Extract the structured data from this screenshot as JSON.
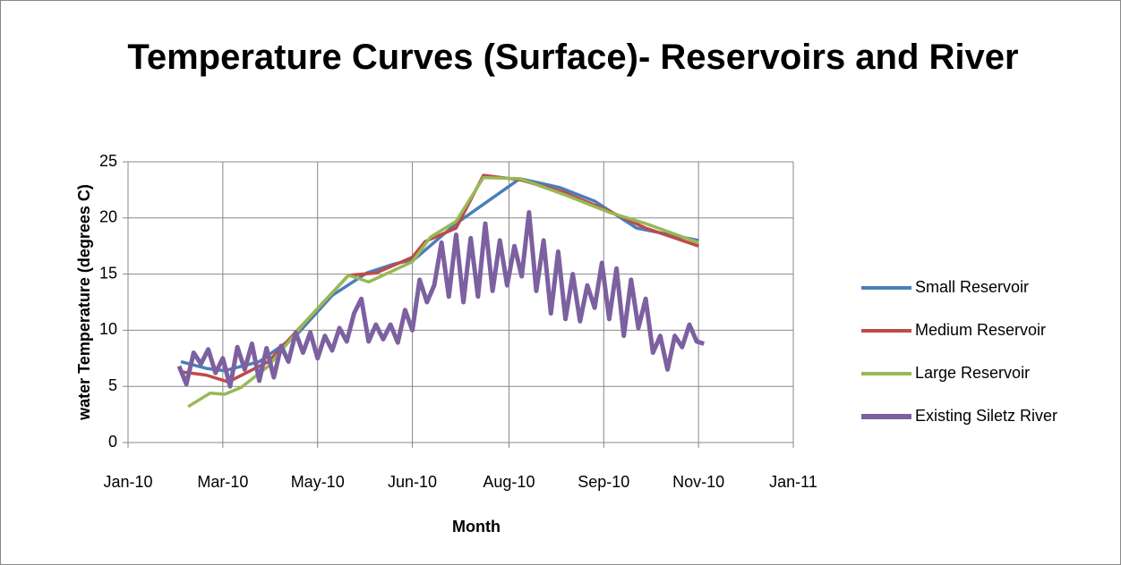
{
  "chart_data": {
    "type": "line",
    "title": "Temperature Curves (Surface)- Reservoirs and River",
    "x_label": "Month",
    "y_label": "water Temperature (degrees C)",
    "xlim": [
      0,
      365
    ],
    "xticks": [
      {
        "value": 0,
        "label": "Jan-10"
      },
      {
        "value": 52,
        "label": "Mar-10"
      },
      {
        "value": 104,
        "label": "May-10"
      },
      {
        "value": 156,
        "label": "Jun-10"
      },
      {
        "value": 209,
        "label": "Aug-10"
      },
      {
        "value": 261,
        "label": "Sep-10"
      },
      {
        "value": 313,
        "label": "Nov-10"
      },
      {
        "value": 365,
        "label": "Jan-11"
      }
    ],
    "ylim": [
      0,
      25
    ],
    "yticks": [
      0,
      5,
      10,
      15,
      20,
      25
    ],
    "grid": true,
    "legend": "right",
    "series": [
      {
        "name": "Small Reservoir",
        "color": "#4a7ebb",
        "x": [
          29,
          43,
          53,
          72,
          92,
          112,
          131,
          146,
          157,
          180,
          215,
          237,
          256,
          279,
          313
        ],
        "values": [
          7.2,
          6.6,
          6.4,
          7.2,
          9.5,
          13.1,
          15.1,
          15.9,
          16.3,
          19.5,
          23.5,
          22.7,
          21.5,
          19.1,
          18.0
        ]
      },
      {
        "name": "Medium Reservoir",
        "color": "#be4b48",
        "x": [
          29,
          43,
          55,
          77,
          97,
          121,
          136,
          156,
          163,
          180,
          195,
          215,
          239,
          264,
          284,
          313
        ],
        "values": [
          6.3,
          6.0,
          5.4,
          7.2,
          10.7,
          14.9,
          15.1,
          16.5,
          17.9,
          19.1,
          23.8,
          23.4,
          22.3,
          20.6,
          19.1,
          17.5
        ]
      },
      {
        "name": "Large Reservoir",
        "color": "#98b954",
        "x": [
          33,
          45,
          53,
          62,
          77,
          97,
          121,
          132,
          156,
          166,
          180,
          195,
          215,
          239,
          264,
          284,
          313
        ],
        "values": [
          3.2,
          4.4,
          4.3,
          4.9,
          6.8,
          10.7,
          14.9,
          14.3,
          16.1,
          18.3,
          19.7,
          23.6,
          23.5,
          22.1,
          20.5,
          19.5,
          17.8
        ]
      },
      {
        "name": "Existing Siletz River",
        "color": "#7d60a0",
        "x": [
          28,
          32,
          36,
          40,
          44,
          48,
          52,
          56,
          60,
          64,
          68,
          72,
          76,
          80,
          84,
          88,
          92,
          96,
          100,
          104,
          108,
          112,
          116,
          120,
          124,
          128,
          132,
          136,
          140,
          144,
          148,
          152,
          156,
          160,
          164,
          168,
          172,
          176,
          180,
          184,
          188,
          192,
          196,
          200,
          204,
          208,
          212,
          216,
          220,
          224,
          228,
          232,
          236,
          240,
          244,
          248,
          252,
          256,
          260,
          264,
          268,
          272,
          276,
          280,
          284,
          288,
          292,
          296,
          300,
          304,
          308,
          312,
          316
        ],
        "values": [
          6.8,
          5.2,
          8.0,
          7.0,
          8.3,
          6.2,
          7.5,
          5.0,
          8.5,
          6.5,
          8.8,
          5.5,
          8.4,
          5.8,
          8.6,
          7.2,
          9.8,
          8.0,
          9.8,
          7.5,
          9.5,
          8.2,
          10.2,
          9.0,
          11.5,
          12.8,
          9.0,
          10.5,
          9.2,
          10.5,
          8.9,
          11.8,
          10.0,
          14.5,
          12.5,
          14.0,
          17.8,
          13.0,
          18.5,
          12.5,
          18.2,
          13.0,
          19.5,
          13.5,
          18.0,
          14.0,
          17.5,
          14.8,
          20.5,
          13.5,
          18.0,
          11.5,
          17.0,
          11.0,
          15.0,
          10.8,
          14.0,
          12.0,
          16.0,
          11.0,
          15.5,
          9.5,
          14.5,
          10.2,
          12.8,
          8.0,
          9.5,
          6.5,
          9.5,
          8.5,
          10.5,
          9.0,
          8.8
        ]
      }
    ]
  }
}
